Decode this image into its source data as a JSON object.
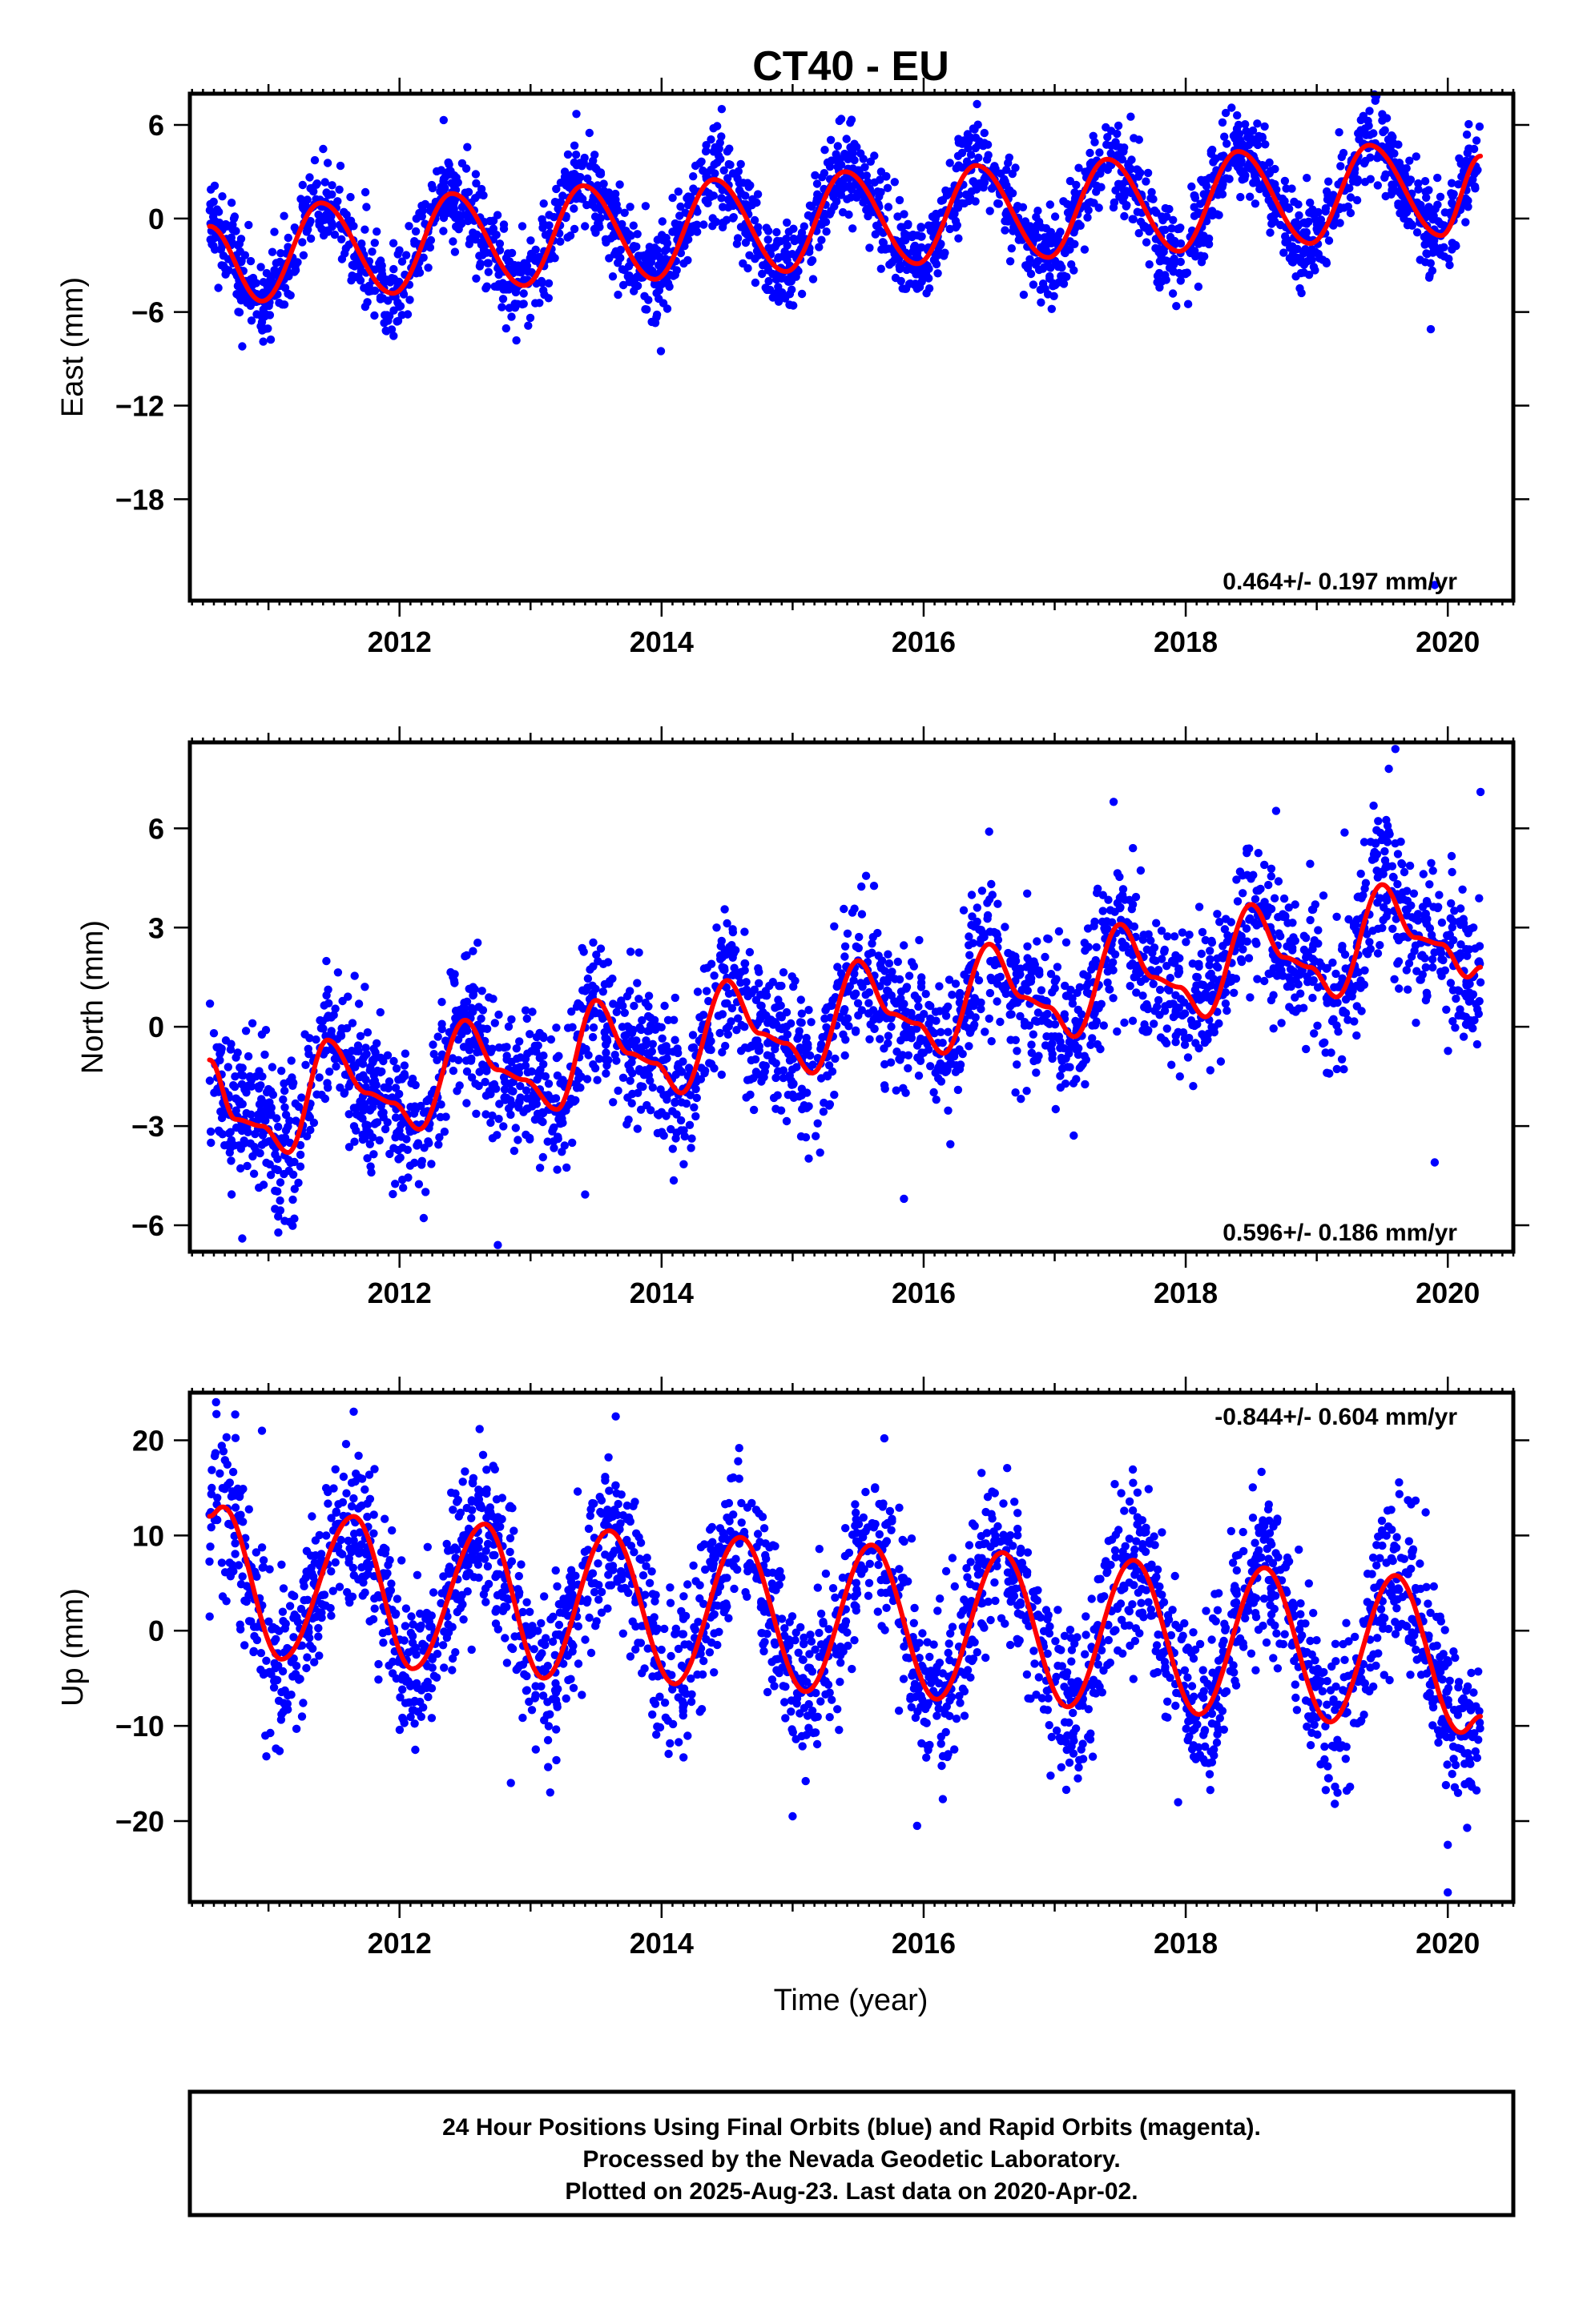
{
  "figure": {
    "title": "CT40 - EU",
    "xlabel": "Time (year)",
    "footer": [
      "24 Hour Positions Using Final Orbits (blue) and Rapid Orbits (magenta).",
      "Processed by the Nevada Geodetic Laboratory.",
      "Plotted on 2025-Aug-23. Last data on 2020-Apr-02."
    ],
    "colors": {
      "points": "#0000ff",
      "model": "#ff0000",
      "frame": "#000000"
    }
  },
  "chart_data": [
    {
      "type": "scatter",
      "name": "east",
      "ylabel": "East (mm)",
      "rate_label": "0.464+/- 0.197 mm/yr",
      "xlim": [
        2010.4,
        2020.5
      ],
      "ylim": [
        -24.5,
        8
      ],
      "xticks": [
        2012,
        2014,
        2016,
        2018,
        2020
      ],
      "xtick_labels": [
        "2012",
        "2014",
        "2016",
        "2018",
        "2020"
      ],
      "yticks": [
        6,
        0,
        -6,
        -12,
        -18
      ],
      "ytick_labels": [
        "6",
        "0",
        "−6",
        "−12",
        "−18"
      ],
      "data_start": 2010.55,
      "data_end": 2020.25,
      "model": {
        "x": [
          2010.55,
          2010.95,
          2011.4,
          2011.95,
          2012.4,
          2012.95,
          2013.4,
          2013.95,
          2014.4,
          2014.95,
          2015.4,
          2015.95,
          2016.4,
          2016.95,
          2017.4,
          2017.95,
          2018.4,
          2018.95,
          2019.4,
          2019.95,
          2020.25
        ],
        "y": [
          -0.5,
          -5.3,
          1.0,
          -4.8,
          1.6,
          -4.3,
          2.1,
          -3.9,
          2.5,
          -3.4,
          3.0,
          -2.9,
          3.4,
          -2.5,
          3.8,
          -2.1,
          4.3,
          -1.6,
          4.7,
          -1.1,
          4.0
        ]
      },
      "scatter_spread": 1.4,
      "outliers": [
        {
          "x": 2019.87,
          "y": -7.1
        },
        {
          "x": 2019.9,
          "y": -23.5
        },
        {
          "x": 2013.35,
          "y": 6.7
        },
        {
          "x": 2018.35,
          "y": 7.1
        },
        {
          "x": 2010.8,
          "y": -8.2
        }
      ]
    },
    {
      "type": "scatter",
      "name": "north",
      "ylabel": "North (mm)",
      "rate_label": "0.596+/- 0.186 mm/yr",
      "xlim": [
        2010.4,
        2020.5
      ],
      "ylim": [
        -6.8,
        8.6
      ],
      "xticks": [
        2012,
        2014,
        2016,
        2018,
        2020
      ],
      "xtick_labels": [
        "2012",
        "2014",
        "2016",
        "2018",
        "2020"
      ],
      "yticks": [
        6,
        3,
        0,
        -3,
        -6
      ],
      "ytick_labels": [
        "6",
        "3",
        "0",
        "−3",
        "−6"
      ],
      "data_start": 2010.55,
      "data_end": 2020.25,
      "model": {
        "x": [
          2010.55,
          2010.75,
          2010.95,
          2011.15,
          2011.45,
          2011.75,
          2011.95,
          2012.15,
          2012.5,
          2012.75,
          2012.95,
          2013.2,
          2013.5,
          2013.75,
          2013.95,
          2014.15,
          2014.5,
          2014.75,
          2014.95,
          2015.15,
          2015.5,
          2015.75,
          2015.95,
          2016.15,
          2016.5,
          2016.75,
          2016.95,
          2017.15,
          2017.5,
          2017.75,
          2017.95,
          2018.15,
          2018.5,
          2018.75,
          2018.95,
          2019.15,
          2019.5,
          2019.75,
          2019.95,
          2020.15,
          2020.25
        ],
        "y": [
          -1.0,
          -2.8,
          -3.0,
          -3.8,
          -0.4,
          -2.0,
          -2.3,
          -3.1,
          0.2,
          -1.3,
          -1.6,
          -2.5,
          0.8,
          -0.8,
          -1.1,
          -2.0,
          1.4,
          -0.2,
          -0.5,
          -1.4,
          2.0,
          0.4,
          0.1,
          -0.8,
          2.5,
          0.9,
          0.6,
          -0.3,
          3.1,
          1.5,
          1.2,
          0.3,
          3.7,
          2.1,
          1.8,
          0.9,
          4.3,
          2.7,
          2.5,
          1.5,
          1.8
        ]
      },
      "scatter_spread": 1.1,
      "outliers": [
        {
          "x": 2019.6,
          "y": 8.4
        },
        {
          "x": 2019.55,
          "y": 7.8
        },
        {
          "x": 2020.25,
          "y": 7.1
        },
        {
          "x": 2019.9,
          "y": -4.1
        },
        {
          "x": 2015.85,
          "y": -5.2
        },
        {
          "x": 2012.75,
          "y": -6.6
        },
        {
          "x": 2010.8,
          "y": -6.4
        },
        {
          "x": 2017.45,
          "y": 6.8
        },
        {
          "x": 2016.5,
          "y": 5.9
        }
      ]
    },
    {
      "type": "scatter",
      "name": "up",
      "ylabel": "Up (mm)",
      "rate_label": "-0.844+/- 0.604 mm/yr",
      "xlim": [
        2010.4,
        2020.5
      ],
      "ylim": [
        -28.5,
        25
      ],
      "xticks": [
        2012,
        2014,
        2016,
        2018,
        2020
      ],
      "xtick_labels": [
        "2012",
        "2014",
        "2016",
        "2018",
        "2020"
      ],
      "yticks": [
        20,
        10,
        0,
        -10,
        -20
      ],
      "ytick_labels": [
        "20",
        "10",
        "0",
        "−10",
        "−20"
      ],
      "data_start": 2010.55,
      "data_end": 2020.25,
      "model": {
        "x": [
          2010.55,
          2010.65,
          2011.1,
          2011.65,
          2012.1,
          2012.65,
          2013.1,
          2013.6,
          2014.1,
          2014.6,
          2015.1,
          2015.6,
          2016.1,
          2016.6,
          2017.1,
          2017.6,
          2018.1,
          2018.6,
          2019.1,
          2019.6,
          2020.1,
          2020.25
        ],
        "y": [
          12.0,
          13.0,
          -3.0,
          12.0,
          -4.0,
          11.2,
          -5.0,
          10.5,
          -5.6,
          9.8,
          -6.4,
          9.0,
          -7.2,
          8.2,
          -8.0,
          7.4,
          -8.8,
          6.6,
          -9.6,
          5.8,
          -10.7,
          -9.0
        ]
      },
      "scatter_spread": 4.2,
      "outliers": [
        {
          "x": 2010.6,
          "y": 24.0
        },
        {
          "x": 2010.95,
          "y": 21.0
        },
        {
          "x": 2011.65,
          "y": 23.0
        },
        {
          "x": 2013.65,
          "y": 22.5
        },
        {
          "x": 2015.7,
          "y": 20.2
        },
        {
          "x": 2015.0,
          "y": -19.5
        },
        {
          "x": 2015.95,
          "y": -20.5
        },
        {
          "x": 2020.0,
          "y": -22.5
        },
        {
          "x": 2020.0,
          "y": -27.5
        },
        {
          "x": 2013.15,
          "y": -17.0
        },
        {
          "x": 2012.85,
          "y": -16.0
        }
      ]
    }
  ]
}
